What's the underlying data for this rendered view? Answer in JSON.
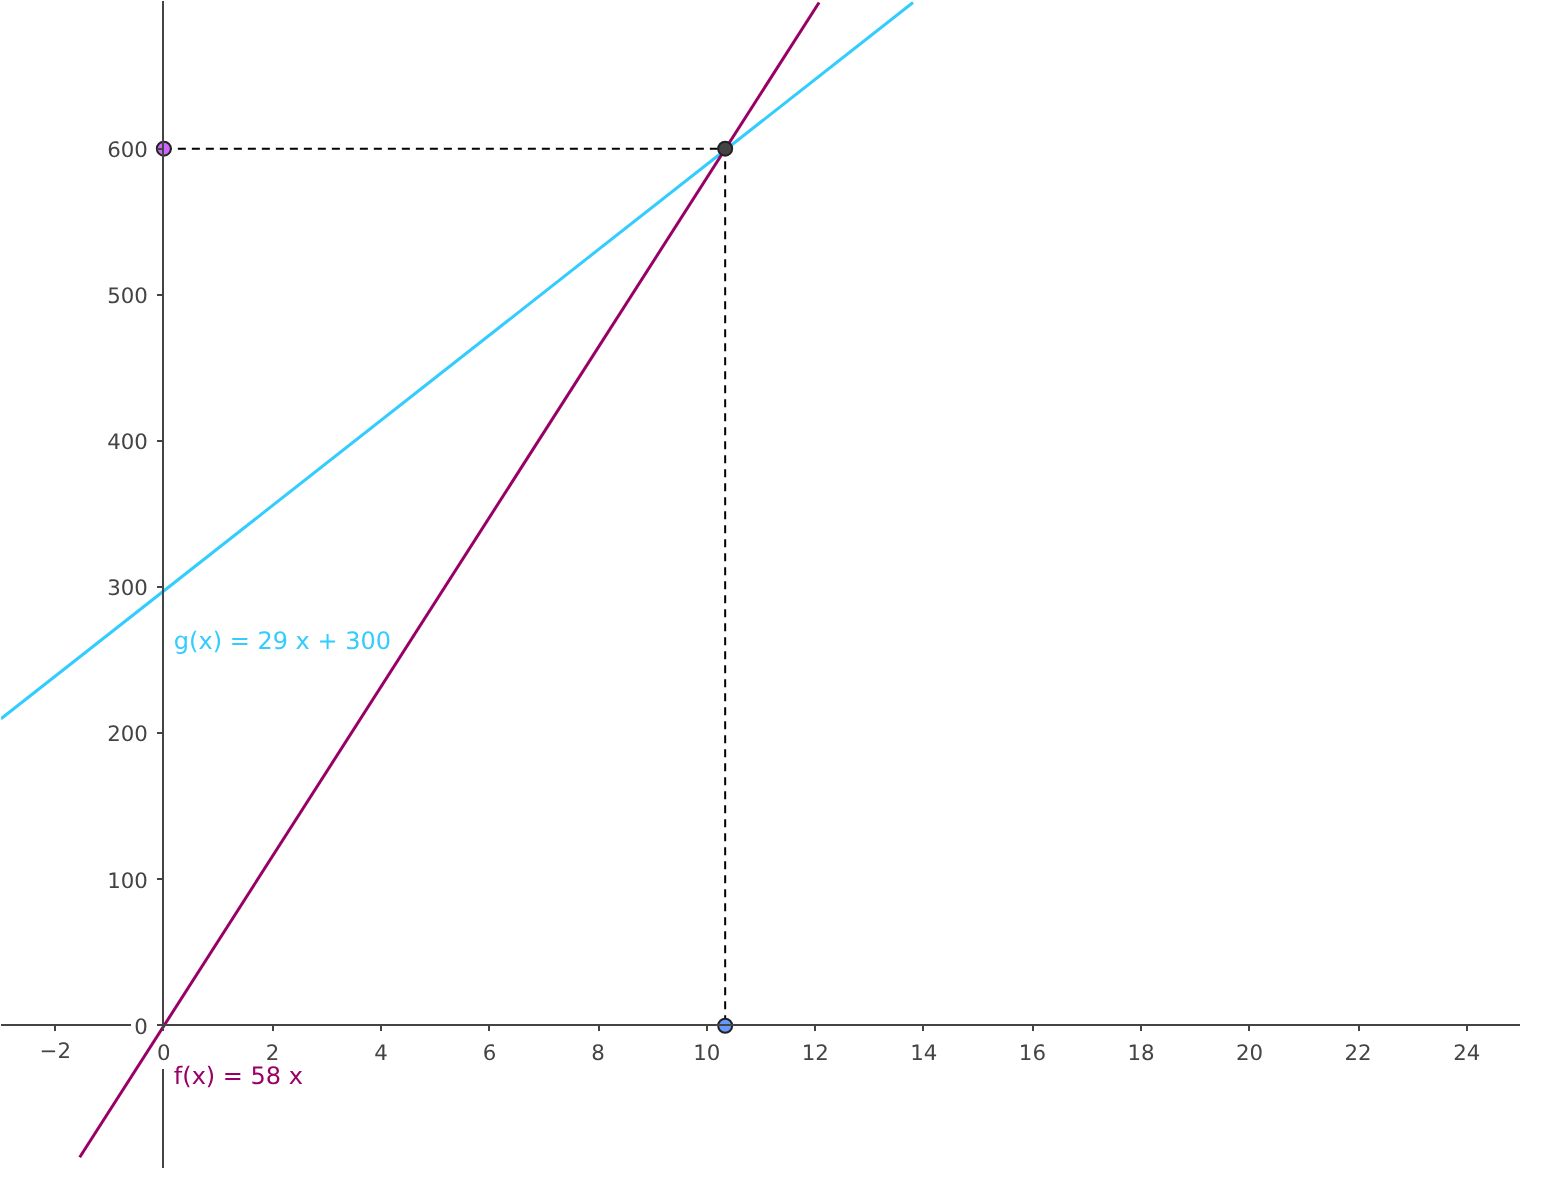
{
  "chart_data": {
    "type": "line",
    "xlim": [
      -3,
      25
    ],
    "ylim": [
      -98,
      701
    ],
    "xticks": [
      -2,
      0,
      2,
      4,
      6,
      8,
      10,
      12,
      14,
      16,
      18,
      20,
      22,
      24
    ],
    "yticks": [
      0,
      100,
      200,
      300,
      400,
      500,
      600
    ],
    "grid": false,
    "series": [
      {
        "color": "#33ccff",
        "x": [
          -3,
          13.8
        ],
        "values": [
          210,
          700
        ]
      },
      {
        "color": "#990066",
        "x": [
          -1.55,
          12.07
        ],
        "values": [
          -90,
          700
        ]
      },
      {
        "color": "#000000",
        "line_style": "dashed",
        "x": [
          0,
          10.34,
          10.34
        ],
        "values": [
          600,
          600,
          0
        ]
      },
      {
        "type": "scatter",
        "marker": "circle",
        "colors": [
          "#cc66ff",
          "#444444",
          "#6699ff"
        ],
        "x": [
          0,
          10.34,
          10.34
        ],
        "values": [
          600,
          600,
          0
        ]
      }
    ],
    "annotations": [
      "g(x) = 29 x + 300",
      "f(x) = 58 x"
    ]
  }
}
